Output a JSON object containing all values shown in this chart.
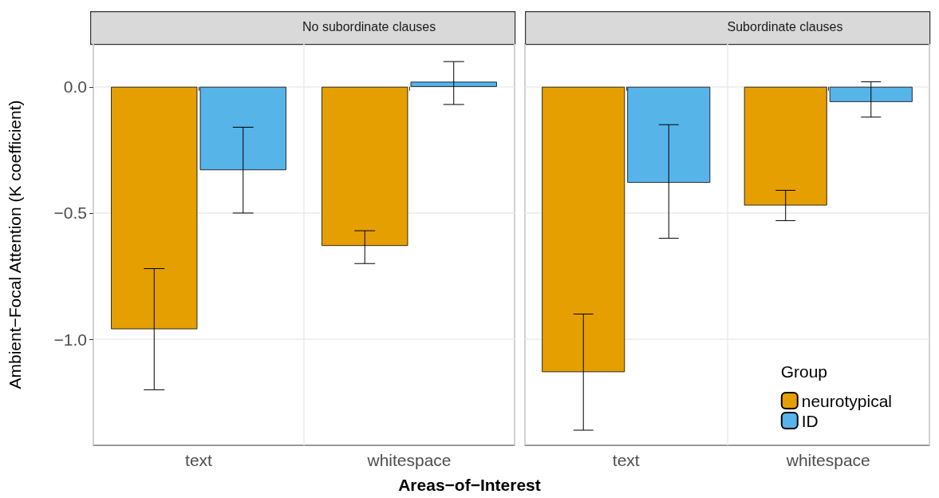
{
  "chart_data": [
    {
      "type": "bar",
      "title": "No subordinate clauses",
      "ylabel": "Ambient−Focal Attention (K coefficient)",
      "xlabel": "Areas−of−Interest",
      "categories": [
        "text",
        "whitespace"
      ],
      "series": [
        {
          "color": "#e69f00",
          "values": [
            -0.96,
            -0.63
          ],
          "errors": [
            [
              -1.2,
              -0.72
            ],
            [
              -0.7,
              -0.57
            ]
          ]
        },
        {
          "color": "#56b4e9",
          "values": [
            -0.33,
            0.02
          ],
          "errors": [
            [
              -0.5,
              -0.16
            ],
            [
              -0.07,
              0.1
            ]
          ]
        }
      ],
      "ylim": [
        -1.42,
        0.17
      ],
      "yticks": [
        {
          "value": -1,
          "label": "−1.0"
        },
        {
          "value": -0.5,
          "label": "−0.5"
        },
        {
          "value": 0,
          "label": "0.0"
        }
      ],
      "grid": true,
      "legend": false
    },
    {
      "type": "bar",
      "title": "Subordinate clauses",
      "categories": [
        "text",
        "whitespace"
      ],
      "legend_title": "Group",
      "series": [
        {
          "name": "neurotypical",
          "color": "#e69f00",
          "values": [
            -1.13,
            -0.47
          ],
          "errors": [
            [
              -1.36,
              -0.9
            ],
            [
              -0.53,
              -0.41
            ]
          ]
        },
        {
          "name": "ID",
          "color": "#56b4e9",
          "values": [
            -0.38,
            -0.06
          ],
          "errors": [
            [
              -0.6,
              -0.15
            ],
            [
              -0.12,
              0.02
            ]
          ]
        }
      ],
      "ylim": [
        -1.42,
        0.17
      ],
      "yticks": [
        {
          "value": -1,
          "label": null
        },
        {
          "value": -0.5,
          "label": null
        },
        {
          "value": 0,
          "label": null
        }
      ],
      "grid": true,
      "legend": "bottom right",
      "tick_labels": "x"
    }
  ]
}
